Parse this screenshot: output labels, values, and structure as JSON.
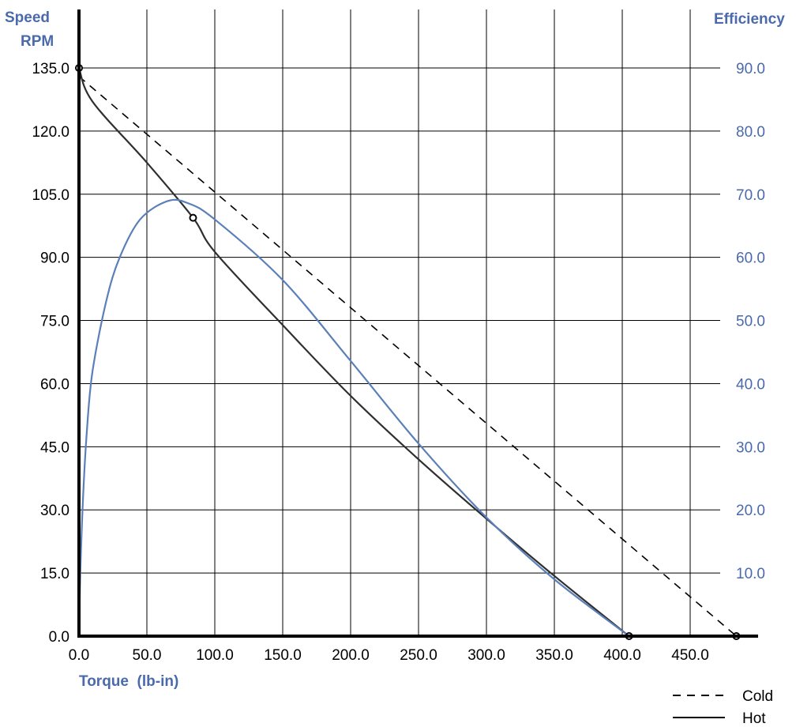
{
  "chart_data": {
    "type": "line",
    "title": "",
    "xlabel": "Torque  (lb-in)",
    "ylabel_left": [
      "Speed",
      "RPM"
    ],
    "ylabel_right": "Efficiency",
    "xlim": [
      0,
      500
    ],
    "ylim_left": [
      0,
      135
    ],
    "ylim_right": [
      0,
      90
    ],
    "x_ticks": [
      "0.0",
      "50.0",
      "100.0",
      "150.0",
      "200.0",
      "250.0",
      "300.0",
      "350.0",
      "400.0",
      "450.0"
    ],
    "y_left_ticks": [
      "0.0",
      "15.0",
      "30.0",
      "45.0",
      "60.0",
      "75.0",
      "90.0",
      "105.0",
      "120.0",
      "135.0"
    ],
    "y_right_ticks": [
      "10.0",
      "20.0",
      "30.0",
      "40.0",
      "50.0",
      "60.0",
      "70.0",
      "80.0",
      "90.0"
    ],
    "grid": true,
    "colors": {
      "speed": "#2f2f2f",
      "efficiency": "#5b7fb8",
      "axis_label": "#4a6aab",
      "grid": "#000000"
    },
    "legend": [
      {
        "name": "Cold",
        "style": "dashed"
      },
      {
        "name": "Hot",
        "style": "solid"
      }
    ],
    "series": [
      {
        "name": "Cold",
        "axis": "left",
        "style": "dashed",
        "x": [
          0,
          484
        ],
        "y": [
          133,
          0
        ]
      },
      {
        "name": "Hot",
        "axis": "left",
        "style": "solid",
        "x": [
          0,
          10,
          50,
          84,
          100,
          150,
          200,
          250,
          300,
          350,
          405
        ],
        "y": [
          135,
          127,
          112.5,
          99.4,
          91.3,
          73.9,
          57.1,
          42.0,
          27.9,
          14.3,
          0
        ]
      },
      {
        "name": "Efficiency",
        "axis": "right",
        "style": "solid",
        "x": [
          0,
          1,
          3,
          6,
          10,
          20,
          30,
          45,
          65,
          80,
          100,
          150,
          200,
          250,
          300,
          350,
          405
        ],
        "y": [
          0,
          10,
          22,
          33,
          42,
          53,
          60,
          66,
          68.9,
          68.6,
          66,
          56.4,
          43.6,
          30.5,
          18.8,
          9,
          0
        ]
      }
    ],
    "markers": [
      {
        "series": "Hot",
        "x": 0,
        "y": 135
      },
      {
        "series": "Hot",
        "x": 84,
        "y": 99.4
      },
      {
        "series": "Hot",
        "x": 405,
        "y": 0
      },
      {
        "series": "Cold",
        "x": 484,
        "y": 0
      }
    ]
  }
}
